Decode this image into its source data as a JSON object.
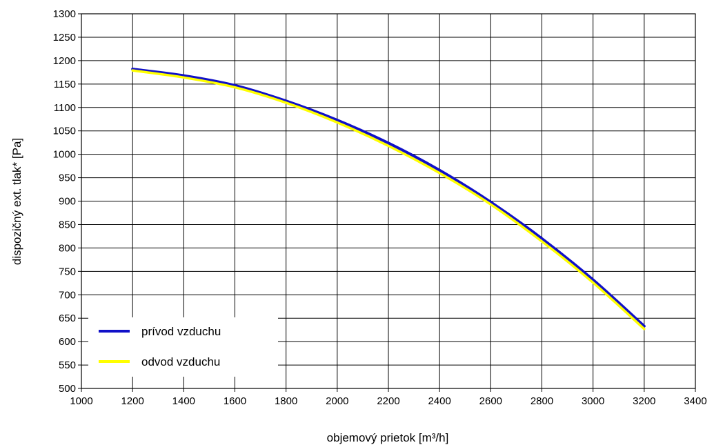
{
  "chart_data": {
    "type": "line",
    "xlabel": "objemový prietok  [m³/h]",
    "ylabel": "dispozičný ext. tlak* [Pa]",
    "xlim": [
      1000,
      3400
    ],
    "ylim": [
      500,
      1300
    ],
    "x_ticks": [
      1000,
      1200,
      1400,
      1600,
      1800,
      2000,
      2200,
      2400,
      2600,
      2800,
      3000,
      3200,
      3400
    ],
    "y_ticks": [
      500,
      550,
      600,
      650,
      700,
      750,
      800,
      850,
      900,
      950,
      1000,
      1050,
      1100,
      1150,
      1200,
      1250,
      1300
    ],
    "grid": true,
    "legend": {
      "placement": "bottom-left"
    },
    "series": [
      {
        "name": "prívod vzduchu",
        "color": "#1010c8",
        "x": [
          1200,
          1400,
          1600,
          1800,
          2000,
          2200,
          2400,
          2600,
          2800,
          3000,
          3200
        ],
        "y": [
          1182,
          1168,
          1147,
          1114,
          1073,
          1024,
          966,
          898,
          820,
          732,
          633
        ]
      },
      {
        "name": "odvod vzduchu",
        "color": "#ffff00",
        "x": [
          1200,
          1400,
          1600,
          1800,
          2000,
          2200,
          2400,
          2600,
          2800,
          3000,
          3200
        ],
        "y": [
          1179,
          1164,
          1143,
          1110,
          1068,
          1018,
          960,
          893,
          814,
          726,
          627
        ]
      }
    ]
  }
}
